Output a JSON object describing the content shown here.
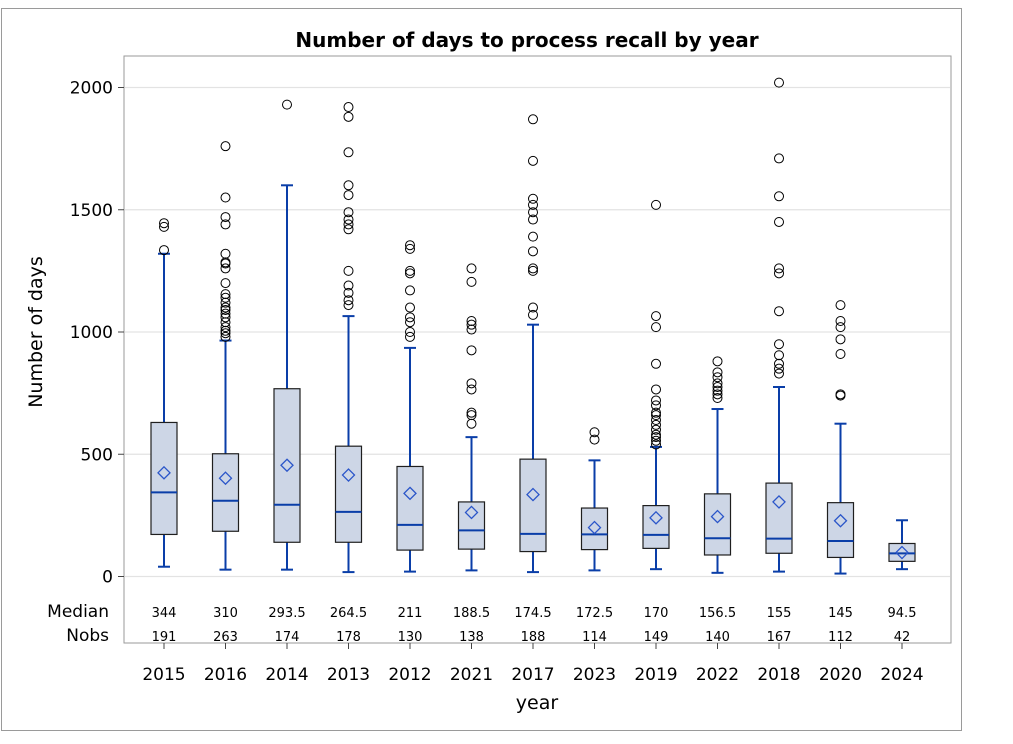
{
  "chart_data": {
    "type": "box",
    "title": "Number of days to process recall by year",
    "xlabel": "year",
    "ylabel": "Number of days",
    "ylim": [
      0,
      2000
    ],
    "yticks": [
      0,
      500,
      1000,
      1500,
      2000
    ],
    "grid": true,
    "stat_labels": [
      "Median",
      "Nobs"
    ],
    "colors": {
      "box_fill": "#cdd6e6",
      "box_stroke": "#1f1f1f",
      "whisker": "#0a3ea8",
      "median": "#0a3ea8",
      "mean_marker": "#2b56c9",
      "outlier": "#000000",
      "grid": "#e3e3e3"
    },
    "categories": [
      "2015",
      "2016",
      "2014",
      "2013",
      "2012",
      "2021",
      "2017",
      "2023",
      "2019",
      "2022",
      "2018",
      "2020",
      "2024"
    ],
    "boxes": [
      {
        "year": "2015",
        "min": 40,
        "q1": 172,
        "median": 344,
        "q3": 630,
        "max": 1320,
        "mean": 424,
        "median_label": "344",
        "nobs": "191",
        "outliers": [
          1335,
          1430,
          1445
        ]
      },
      {
        "year": "2016",
        "min": 28,
        "q1": 185,
        "median": 310,
        "q3": 502,
        "max": 965,
        "mean": 402,
        "median_label": "310",
        "nobs": "263",
        "outliers": [
          980,
          995,
          1005,
          1020,
          1040,
          1060,
          1075,
          1090,
          1100,
          1120,
          1140,
          1155,
          1200,
          1260,
          1280,
          1285,
          1320,
          1440,
          1470,
          1550,
          1760
        ]
      },
      {
        "year": "2014",
        "min": 28,
        "q1": 140,
        "median": 293.5,
        "q3": 768,
        "max": 1600,
        "mean": 455,
        "median_label": "293.5",
        "nobs": "174",
        "outliers": [
          1930
        ]
      },
      {
        "year": "2013",
        "min": 18,
        "q1": 140,
        "median": 264.5,
        "q3": 533,
        "max": 1065,
        "mean": 415,
        "median_label": "264.5",
        "nobs": "178",
        "outliers": [
          1110,
          1130,
          1160,
          1190,
          1250,
          1420,
          1440,
          1460,
          1490,
          1560,
          1600,
          1735,
          1880,
          1920
        ]
      },
      {
        "year": "2012",
        "min": 20,
        "q1": 108,
        "median": 211,
        "q3": 450,
        "max": 935,
        "mean": 340,
        "median_label": "211",
        "nobs": "130",
        "outliers": [
          980,
          1000,
          1040,
          1060,
          1100,
          1170,
          1240,
          1250,
          1340,
          1355
        ]
      },
      {
        "year": "2021",
        "min": 25,
        "q1": 112,
        "median": 188.5,
        "q3": 305,
        "max": 570,
        "mean": 262,
        "median_label": "188.5",
        "nobs": "138",
        "outliers": [
          625,
          660,
          670,
          765,
          790,
          925,
          1010,
          1030,
          1045,
          1205,
          1260
        ]
      },
      {
        "year": "2017",
        "min": 18,
        "q1": 102,
        "median": 174.5,
        "q3": 480,
        "max": 1030,
        "mean": 335,
        "median_label": "174.5",
        "nobs": "188",
        "outliers": [
          1070,
          1100,
          1250,
          1260,
          1330,
          1390,
          1460,
          1490,
          1520,
          1545,
          1700,
          1870
        ]
      },
      {
        "year": "2023",
        "min": 25,
        "q1": 110,
        "median": 172.5,
        "q3": 280,
        "max": 475,
        "mean": 200,
        "median_label": "172.5",
        "nobs": "114",
        "outliers": [
          560,
          590
        ]
      },
      {
        "year": "2019",
        "min": 30,
        "q1": 115,
        "median": 170,
        "q3": 290,
        "max": 530,
        "mean": 240,
        "median_label": "170",
        "nobs": "149",
        "outliers": [
          540,
          555,
          570,
          580,
          600,
          620,
          640,
          660,
          670,
          700,
          720,
          765,
          870,
          1020,
          1065,
          1520
        ]
      },
      {
        "year": "2022",
        "min": 15,
        "q1": 88,
        "median": 156.5,
        "q3": 338,
        "max": 685,
        "mean": 245,
        "median_label": "156.5",
        "nobs": "140",
        "outliers": [
          730,
          745,
          760,
          775,
          790,
          815,
          835,
          880
        ]
      },
      {
        "year": "2018",
        "min": 20,
        "q1": 95,
        "median": 155,
        "q3": 382,
        "max": 775,
        "mean": 305,
        "median_label": "155",
        "nobs": "167",
        "outliers": [
          830,
          850,
          870,
          905,
          950,
          1085,
          1240,
          1260,
          1450,
          1555,
          1710,
          2020
        ]
      },
      {
        "year": "2020",
        "min": 12,
        "q1": 78,
        "median": 145,
        "q3": 302,
        "max": 625,
        "mean": 228,
        "median_label": "145",
        "nobs": "112",
        "outliers": [
          740,
          745,
          910,
          970,
          1020,
          1045,
          1110
        ]
      },
      {
        "year": "2024",
        "min": 30,
        "q1": 62,
        "median": 94.5,
        "q3": 135,
        "max": 230,
        "mean": 98,
        "median_label": "94.5",
        "nobs": "42",
        "outliers": []
      }
    ]
  }
}
